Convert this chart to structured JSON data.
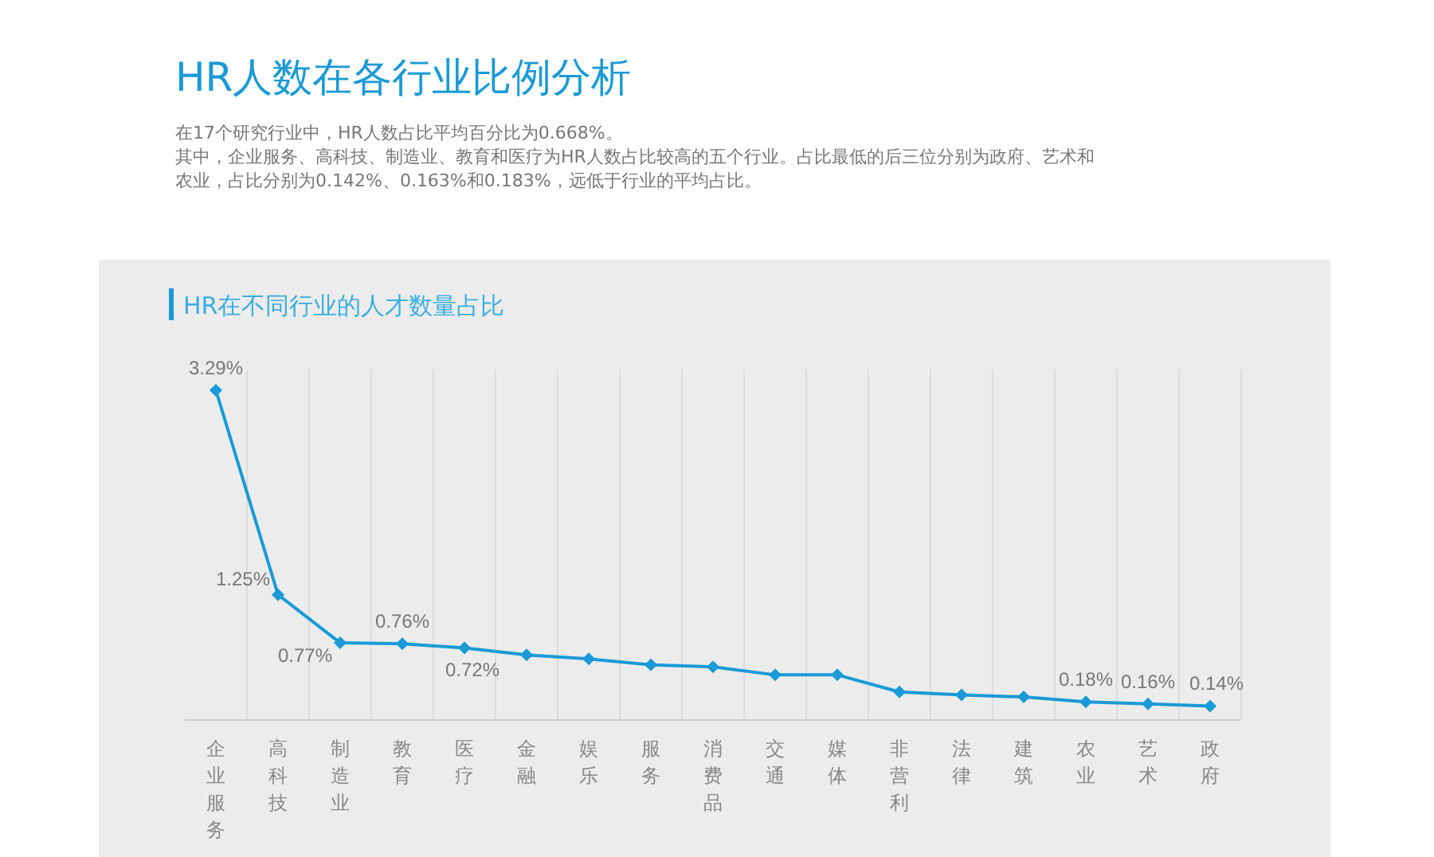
{
  "chart_data": {
    "type": "line",
    "title": "HR人数在各行业比例分析",
    "subtitle": "在17个研究行业中，HR人数占比平均百分比为0.668%。",
    "annotations": [
      "其中，企业服务、高科技、制造业、教育和医疗为HR人数占比较高的五个行业。占比最低的后三位分别为政府、艺术和农业，占比分别为0.142%、0.163%和0.183%，远低于行业的平均占比。",
      "HR在不同行业的人才数量占比"
    ],
    "categories": [
      "企业服务",
      "高科技",
      "制造业",
      "教育",
      "医疗",
      "金融",
      "娱乐",
      "服务",
      "消费品",
      "交通",
      "媒体",
      "非营利",
      "法律",
      "建筑",
      "农业",
      "艺术",
      "政府"
    ],
    "series": [
      {
        "color": "#1a9ad6",
        "values": [
          3.29,
          1.25,
          0.77,
          0.76,
          0.72,
          0.65,
          0.61,
          0.55,
          0.53,
          0.45,
          0.45,
          0.28,
          0.25,
          0.23,
          0.18,
          0.16,
          0.14
        ],
        "value_labels": [
          "3.29%",
          "1.25%",
          "0.77%",
          "0.76%",
          "0.72%",
          null,
          null,
          null,
          null,
          null,
          null,
          null,
          null,
          null,
          "0.18%",
          "0.16%",
          "0.14%"
        ]
      }
    ],
    "marker": "diamond",
    "line_style": "solid",
    "grid": "x"
  }
}
